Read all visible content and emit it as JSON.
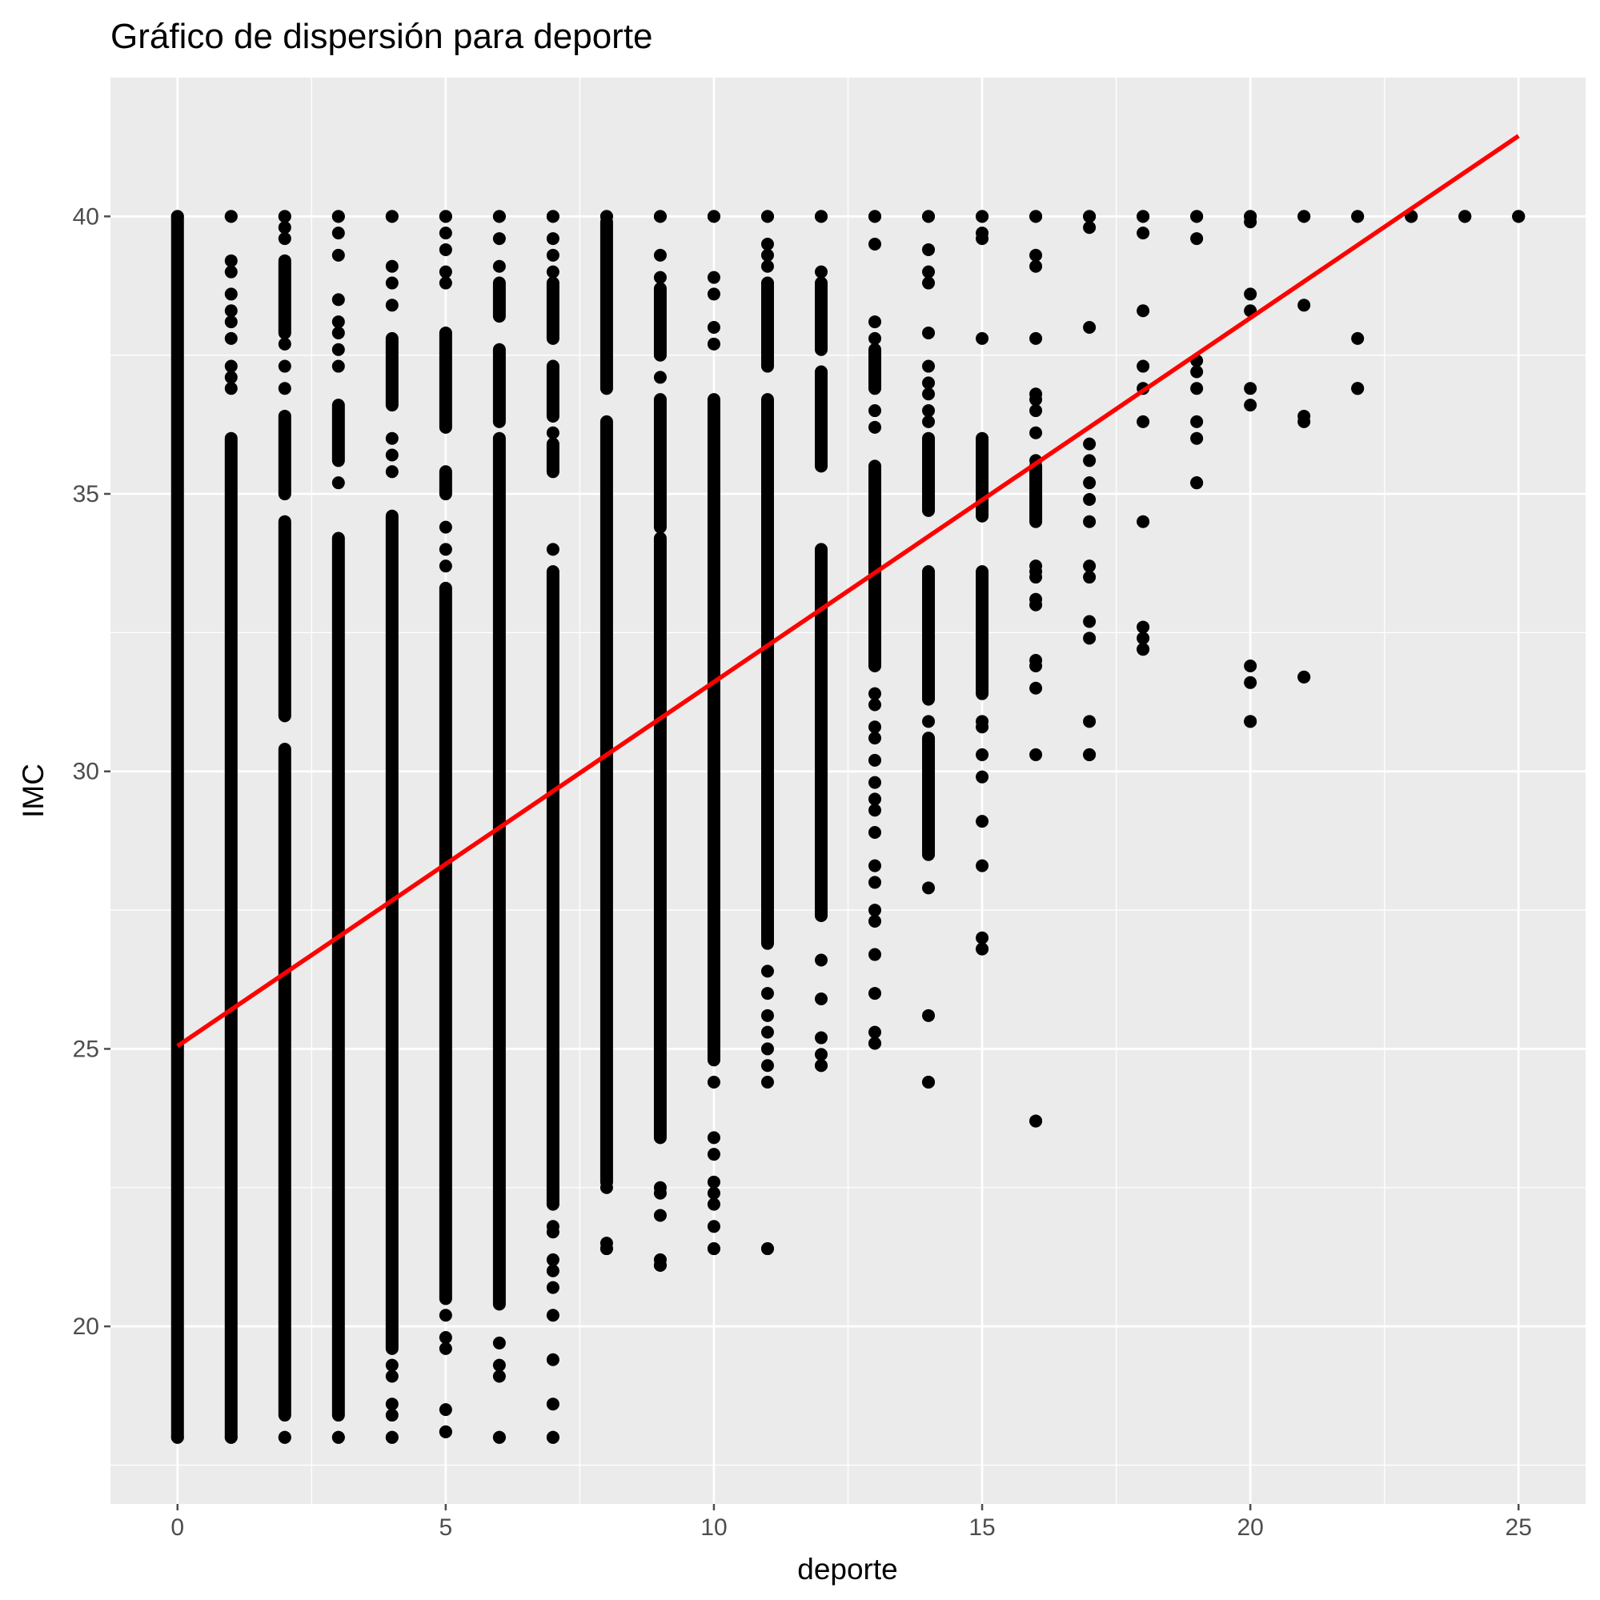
{
  "chart_data": {
    "type": "scatter",
    "title": "Gráfico de dispersión para deporte",
    "xlabel": "deporte",
    "ylabel": "IMC",
    "xlim": [
      -1.25,
      26.25
    ],
    "ylim": [
      16.8,
      42.5
    ],
    "x_ticks": [
      0,
      5,
      10,
      15,
      20,
      25
    ],
    "y_ticks": [
      20,
      25,
      30,
      35,
      40
    ],
    "grid": true,
    "legend": "none",
    "colors": {
      "panel": "#EBEBEB",
      "grid": "#FFFFFF",
      "points": "#000000",
      "fit_line": "#FF0000",
      "tick": "#4D4D4D"
    },
    "series": [
      {
        "kind": "points",
        "columns": [
          {
            "x": 0,
            "y_min": 18.0,
            "y_max": 40.0,
            "dense_segments": [
              [
                18.0,
                40.0
              ]
            ],
            "points": []
          },
          {
            "x": 1,
            "y_min": 18.0,
            "y_max": 40.0,
            "dense_segments": [
              [
                18.0,
                36.0
              ]
            ],
            "points": [
              40.0,
              39.2,
              39.0,
              38.6,
              38.3,
              38.1,
              37.8,
              37.3,
              37.1,
              36.9
            ]
          },
          {
            "x": 2,
            "y_min": 18.0,
            "y_max": 40.0,
            "dense_segments": [
              [
                18.4,
                30.4
              ],
              [
                31.0,
                34.5
              ],
              [
                35.0,
                36.4
              ],
              [
                37.9,
                39.2
              ]
            ],
            "points": [
              18.0,
              37.7,
              37.3,
              36.9,
              39.6,
              39.8,
              40.0
            ]
          },
          {
            "x": 3,
            "y_min": 18.0,
            "y_max": 40.0,
            "dense_segments": [
              [
                18.4,
                34.2
              ],
              [
                35.6,
                36.6
              ]
            ],
            "points": [
              18.0,
              35.2,
              37.3,
              37.6,
              37.9,
              38.1,
              38.5,
              39.3,
              39.7,
              40.0
            ]
          },
          {
            "x": 4,
            "y_min": 18.0,
            "y_max": 40.0,
            "dense_segments": [
              [
                19.6,
                34.6
              ],
              [
                36.6,
                37.8
              ]
            ],
            "points": [
              18.0,
              18.4,
              18.6,
              19.1,
              19.3,
              35.4,
              35.7,
              36.0,
              38.4,
              38.8,
              39.1,
              40.0
            ]
          },
          {
            "x": 5,
            "y_min": 18.1,
            "y_max": 40.0,
            "dense_segments": [
              [
                20.5,
                33.3
              ],
              [
                36.2,
                37.9
              ],
              [
                35.0,
                35.4
              ]
            ],
            "points": [
              18.1,
              18.5,
              19.6,
              19.8,
              20.2,
              33.7,
              34.0,
              34.4,
              38.8,
              39.0,
              39.4,
              39.7,
              40.0
            ]
          },
          {
            "x": 6,
            "y_min": 18.0,
            "y_max": 40.0,
            "dense_segments": [
              [
                20.4,
                36.0
              ],
              [
                36.3,
                37.6
              ],
              [
                38.2,
                38.8
              ]
            ],
            "points": [
              18.0,
              19.1,
              19.3,
              19.7,
              39.1,
              39.6,
              40.0
            ]
          },
          {
            "x": 7,
            "y_min": 18.0,
            "y_max": 40.0,
            "dense_segments": [
              [
                22.2,
                33.6
              ],
              [
                35.4,
                35.9
              ],
              [
                36.4,
                37.3
              ],
              [
                37.8,
                38.8
              ]
            ],
            "points": [
              18.0,
              18.6,
              19.4,
              20.2,
              20.7,
              21.0,
              21.2,
              21.7,
              21.8,
              34.0,
              36.1,
              39.0,
              39.3,
              39.6,
              40.0
            ]
          },
          {
            "x": 8,
            "y_min": 21.4,
            "y_max": 40.0,
            "dense_segments": [
              [
                22.6,
                36.3
              ],
              [
                36.9,
                39.9
              ]
            ],
            "points": [
              21.4,
              21.5,
              22.5,
              40.0
            ]
          },
          {
            "x": 9,
            "y_min": 21.1,
            "y_max": 40.0,
            "dense_segments": [
              [
                23.4,
                34.2
              ],
              [
                34.4,
                36.7
              ],
              [
                37.5,
                38.7
              ]
            ],
            "points": [
              21.1,
              21.2,
              22.0,
              22.4,
              22.5,
              37.1,
              38.9,
              39.3,
              40.0
            ]
          },
          {
            "x": 10,
            "y_min": 21.4,
            "y_max": 40.0,
            "dense_segments": [
              [
                24.8,
                36.7
              ]
            ],
            "points": [
              21.4,
              21.8,
              22.2,
              22.4,
              22.6,
              23.1,
              23.4,
              24.4,
              37.7,
              38.0,
              38.6,
              38.9,
              40.0
            ]
          },
          {
            "x": 11,
            "y_min": 21.4,
            "y_max": 40.0,
            "dense_segments": [
              [
                26.9,
                36.7
              ],
              [
                37.3,
                38.8
              ]
            ],
            "points": [
              21.4,
              24.4,
              24.7,
              25.0,
              25.3,
              25.6,
              26.0,
              26.4,
              39.1,
              39.3,
              39.5,
              40.0
            ]
          },
          {
            "x": 12,
            "y_min": 24.7,
            "y_max": 40.0,
            "dense_segments": [
              [
                27.4,
                34.0
              ],
              [
                35.5,
                37.2
              ],
              [
                37.6,
                38.8
              ]
            ],
            "points": [
              24.7,
              24.9,
              25.2,
              25.9,
              26.6,
              39.0,
              40.0
            ]
          },
          {
            "x": 13,
            "y_min": 25.1,
            "y_max": 40.0,
            "dense_segments": [
              [
                31.9,
                35.5
              ],
              [
                36.9,
                37.6
              ]
            ],
            "points": [
              25.1,
              25.3,
              26.0,
              26.7,
              27.3,
              27.5,
              28.0,
              28.3,
              28.9,
              29.3,
              29.5,
              29.8,
              30.2,
              30.6,
              30.8,
              31.2,
              31.4,
              36.2,
              36.5,
              37.8,
              38.1,
              39.5,
              40.0
            ]
          },
          {
            "x": 14,
            "y_min": 24.4,
            "y_max": 40.0,
            "dense_segments": [
              [
                28.5,
                30.6
              ],
              [
                31.3,
                33.6
              ],
              [
                34.7,
                36.0
              ]
            ],
            "points": [
              24.4,
              25.6,
              27.9,
              30.9,
              36.3,
              36.5,
              36.8,
              37.0,
              37.3,
              37.9,
              38.8,
              39.0,
              39.4,
              40.0
            ]
          },
          {
            "x": 15,
            "y_min": 26.8,
            "y_max": 40.0,
            "dense_segments": [
              [
                31.4,
                33.6
              ],
              [
                34.6,
                36.0
              ]
            ],
            "points": [
              26.8,
              27.0,
              28.3,
              29.1,
              29.9,
              30.3,
              30.8,
              30.9,
              32.2,
              32.5,
              32.9,
              37.8,
              39.6,
              39.7,
              40.0
            ]
          },
          {
            "x": 16,
            "y_min": 23.7,
            "y_max": 40.0,
            "dense_segments": [
              [
                34.5,
                35.5
              ]
            ],
            "points": [
              23.7,
              30.3,
              31.5,
              31.9,
              32.0,
              33.0,
              33.1,
              33.5,
              33.6,
              33.7,
              35.6,
              36.1,
              36.5,
              36.7,
              36.8,
              37.8,
              39.1,
              39.3,
              40.0
            ]
          },
          {
            "x": 17,
            "y_min": 30.3,
            "y_max": 40.0,
            "dense_segments": [],
            "points": [
              30.3,
              30.9,
              32.4,
              32.7,
              33.5,
              33.7,
              34.5,
              34.9,
              35.2,
              35.6,
              35.9,
              38.0,
              39.8,
              40.0
            ]
          },
          {
            "x": 18,
            "y_min": 32.2,
            "y_max": 40.0,
            "dense_segments": [],
            "points": [
              32.2,
              32.4,
              32.6,
              34.5,
              36.3,
              36.9,
              37.3,
              38.3,
              39.7,
              40.0
            ]
          },
          {
            "x": 19,
            "y_min": 35.2,
            "y_max": 40.0,
            "dense_segments": [],
            "points": [
              35.2,
              36.0,
              36.3,
              36.9,
              37.2,
              37.4,
              39.6,
              40.0
            ]
          },
          {
            "x": 20,
            "y_min": 30.9,
            "y_max": 40.0,
            "dense_segments": [],
            "points": [
              30.9,
              31.6,
              31.9,
              36.6,
              36.9,
              38.3,
              38.6,
              39.9,
              40.0
            ]
          },
          {
            "x": 21,
            "y_min": 31.7,
            "y_max": 40.0,
            "dense_segments": [],
            "points": [
              31.7,
              36.3,
              36.4,
              38.4,
              40.0
            ]
          },
          {
            "x": 22,
            "y_min": 36.9,
            "y_max": 40.0,
            "dense_segments": [],
            "points": [
              36.9,
              37.8,
              40.0
            ]
          },
          {
            "x": 23,
            "y_min": 40.0,
            "y_max": 40.0,
            "dense_segments": [],
            "points": [
              40.0
            ]
          },
          {
            "x": 24,
            "y_min": 40.0,
            "y_max": 40.0,
            "dense_segments": [],
            "points": [
              40.0
            ]
          },
          {
            "x": 25,
            "y_min": 40.0,
            "y_max": 40.0,
            "dense_segments": [],
            "points": [
              40.0
            ]
          }
        ]
      },
      {
        "kind": "fit_line",
        "x": [
          0,
          25
        ],
        "y": [
          25.05,
          41.45
        ]
      }
    ]
  }
}
